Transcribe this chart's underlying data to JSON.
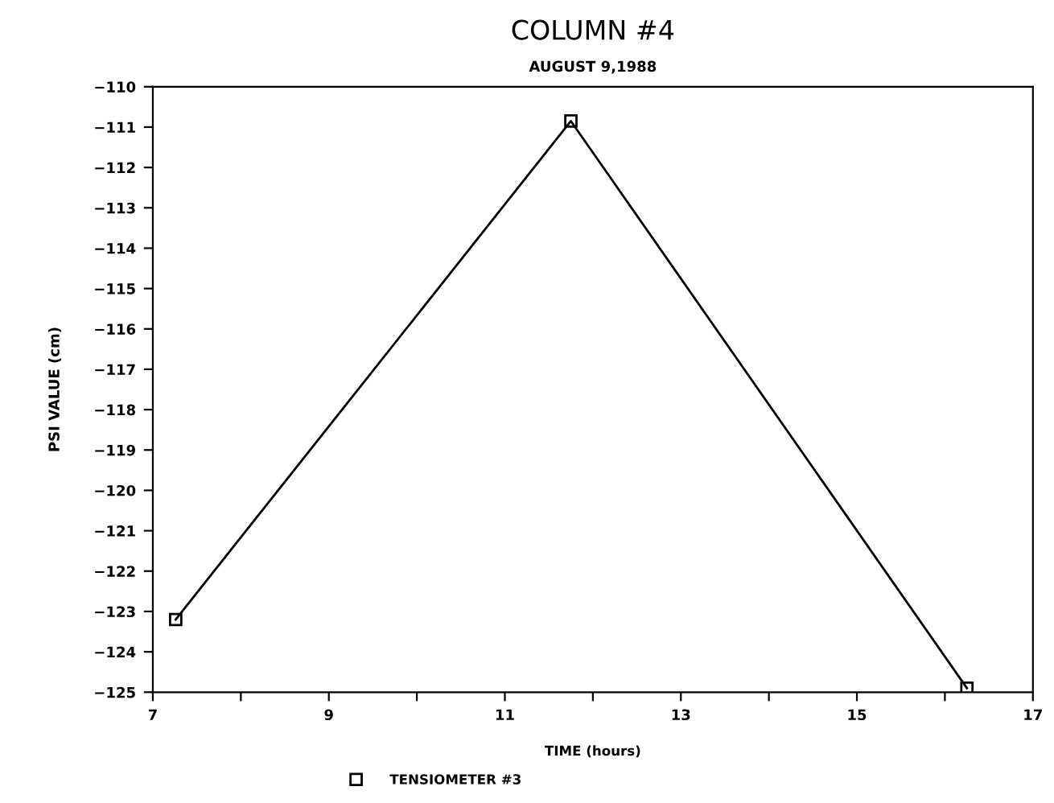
{
  "chart_data": {
    "type": "line",
    "title": "COLUMN #4",
    "subtitle": "AUGUST 9,1988",
    "xlabel": "TIME (hours)",
    "ylabel": "PSI VALUE (cm)",
    "x": [
      7.26,
      11.75,
      16.25
    ],
    "series": [
      {
        "name": "TENSIOMETER #3",
        "color": "#000000",
        "values": [
          -123.2,
          -110.85,
          -124.9
        ]
      }
    ],
    "xlim": [
      7,
      17
    ],
    "ylim": [
      -125,
      -110
    ],
    "xticks": [
      7,
      {
        "value": 8,
        "label": null
      },
      9,
      {
        "value": 10,
        "label": null
      },
      11,
      {
        "value": 12,
        "label": null
      },
      13,
      {
        "value": 14,
        "label": null
      },
      15,
      {
        "value": 16,
        "label": null
      },
      17
    ],
    "yticks": [
      -110,
      -111,
      -112,
      -113,
      -114,
      -115,
      -116,
      -117,
      -118,
      -119,
      -120,
      -121,
      -122,
      -123,
      -124,
      -125
    ],
    "marker": "square",
    "line_style": "solid",
    "legend": "bottom"
  }
}
